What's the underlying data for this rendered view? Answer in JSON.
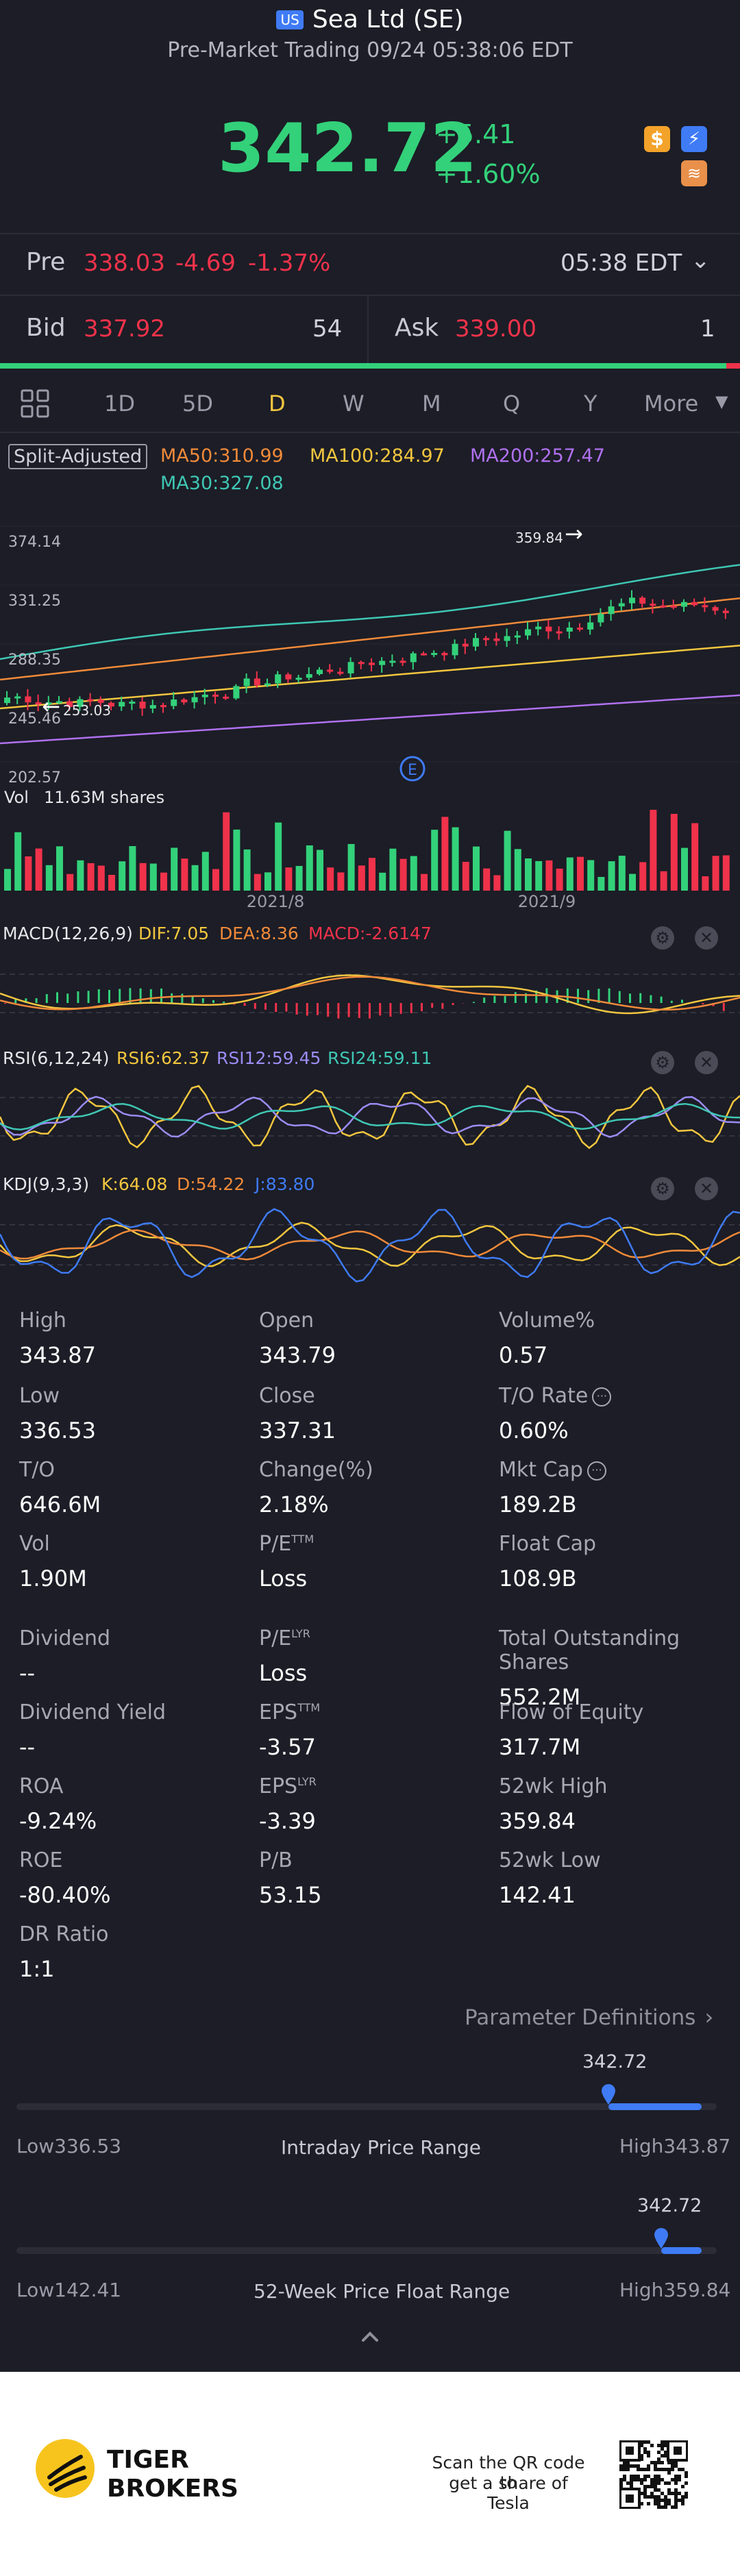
{
  "header": {
    "market_badge": "US",
    "title": "Sea Ltd (SE)",
    "subtitle": "Pre-Market Trading 09/24 05:38:06 EDT",
    "price": "342.72",
    "change": "+5.41",
    "change_pct": "+1.60%",
    "icons": [
      "dollar-icon",
      "lightning-icon",
      "layers-icon"
    ]
  },
  "pre": {
    "label": "Pre",
    "price": "338.03",
    "change": "-4.69",
    "pct": "-1.37%",
    "time": "05:38 EDT"
  },
  "bidask": {
    "bid_label": "Bid",
    "bid": "337.92",
    "bid_size": "54",
    "ask_label": "Ask",
    "ask": "339.00",
    "ask_size": "1"
  },
  "tabs": {
    "items": [
      "1D",
      "5D",
      "D",
      "W",
      "M",
      "Q",
      "Y"
    ],
    "active": "D",
    "more": "More"
  },
  "indicators": {
    "split": "Split-Adjusted",
    "ma50": "MA50:310.99",
    "ma100": "MA100:284.97",
    "ma200": "MA200:257.47",
    "ma30": "MA30:327.08"
  },
  "chart_labels": {
    "y_ticks": [
      "374.14",
      "331.25",
      "288.35",
      "245.46",
      "202.57"
    ],
    "peak_label": "359.84",
    "low_label": "253.03",
    "event_marker": "E",
    "vol_label": "Vol",
    "vol_value": "11.63M shares",
    "x_ticks": [
      "2021/8",
      "2021/9"
    ]
  },
  "macd": {
    "name": "MACD(12,26,9)",
    "dif": "DIF:7.05",
    "dea": "DEA:8.36",
    "macd": "MACD:-2.6147"
  },
  "rsi": {
    "name": "RSI(6,12,24)",
    "rsi6": "RSI6:62.37",
    "rsi12": "RSI12:59.45",
    "rsi24": "RSI24:59.11"
  },
  "kdj": {
    "name": "KDJ(9,3,3)",
    "k": "K:64.08",
    "d": "D:54.22",
    "j": "J:83.80"
  },
  "stats": [
    [
      "High",
      "343.87"
    ],
    [
      "Open",
      "343.79"
    ],
    [
      "Volume%",
      "0.57"
    ],
    [
      "Low",
      "336.53"
    ],
    [
      "Close",
      "337.31"
    ],
    [
      "T/O Rate",
      "0.60%"
    ],
    [
      "T/O",
      "646.6M"
    ],
    [
      "Change(%)",
      "2.18%"
    ],
    [
      "Mkt Cap",
      "189.2B"
    ],
    [
      "Vol",
      "1.90M"
    ],
    [
      "P/E",
      "Loss"
    ],
    [
      "Float Cap",
      "108.9B"
    ],
    [
      "Dividend",
      "--"
    ],
    [
      "P/E",
      "Loss"
    ],
    [
      "Total Outstanding Shares",
      "552.2M"
    ],
    [
      "Dividend Yield",
      "--"
    ],
    [
      "EPS",
      "-3.57"
    ],
    [
      "Flow of Equity",
      "317.7M"
    ],
    [
      "ROA",
      "-9.24%"
    ],
    [
      "EPS",
      "-3.39"
    ],
    [
      "52wk High",
      "359.84"
    ],
    [
      "ROE",
      "-80.40%"
    ],
    [
      "P/B",
      "53.15"
    ],
    [
      "52wk Low",
      "142.41"
    ],
    [
      "DR Ratio",
      "1:1"
    ]
  ],
  "stat_sups": {
    "ttm": "TTM",
    "lyr": "LYR"
  },
  "param_defs": "Parameter Definitions",
  "intraday": {
    "current": "342.72",
    "low_label": "Low",
    "low": "336.53",
    "title": "Intraday Price Range",
    "high_label": "High",
    "high": "343.87",
    "fraction": 0.845
  },
  "week52": {
    "current": "342.72",
    "low_label": "Low",
    "low": "142.41",
    "title": "52-Week Price Float Range",
    "high_label": "High",
    "high": "359.84",
    "fraction": 0.921
  },
  "footer": {
    "brand_line1": "TIGER",
    "brand_line2": "BROKERS",
    "qr_line1": "Scan the QR code to",
    "qr_line2": "get a share of Tesla"
  },
  "colors": {
    "up": "#33d17a",
    "down": "#f0324b",
    "bg": "#1c1d26",
    "accent": "#f3c63f",
    "bar": "#3f7bf5"
  }
}
